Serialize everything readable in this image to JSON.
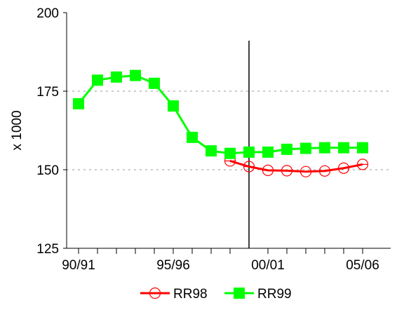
{
  "chart_data": {
    "type": "line",
    "title": "",
    "xlabel": "",
    "ylabel": "x 1000",
    "ylim": [
      125,
      200
    ],
    "yticks": [
      125,
      150,
      175,
      200
    ],
    "xlim": [
      1990,
      2006
    ],
    "xticks": [
      {
        "x": 1990,
        "label": "90/91"
      },
      {
        "x": 1995,
        "label": "95/96"
      },
      {
        "x": 2000,
        "label": "00/01"
      },
      {
        "x": 2005,
        "label": "05/06"
      }
    ],
    "minor_xticks": [
      1991,
      1992,
      1993,
      1994,
      1996,
      1997,
      1998,
      2001,
      2002,
      2003,
      2004
    ],
    "grid": {
      "y_dashed_at": [
        150,
        175
      ]
    },
    "vertical_marker_x": 1999,
    "legend_position": "bottom",
    "series": [
      {
        "name": "RR98",
        "color": "#ff0000",
        "marker": "circle-open",
        "x": [
          1998,
          1999,
          2000,
          2001,
          2002,
          2003,
          2004,
          2005
        ],
        "y": [
          152.8,
          151.0,
          149.8,
          149.7,
          149.4,
          149.6,
          150.5,
          151.7
        ]
      },
      {
        "name": "RR99",
        "color": "#00ff00",
        "marker": "square",
        "x": [
          1990,
          1991,
          1992,
          1993,
          1994,
          1995,
          1996,
          1997,
          1998,
          1999,
          2000,
          2001,
          2002,
          2003,
          2004,
          2005
        ],
        "y": [
          171.0,
          178.5,
          179.5,
          180.0,
          177.5,
          170.3,
          160.3,
          156.0,
          155.2,
          155.6,
          155.6,
          156.5,
          156.8,
          157.0,
          157.0,
          157.0
        ]
      }
    ]
  }
}
